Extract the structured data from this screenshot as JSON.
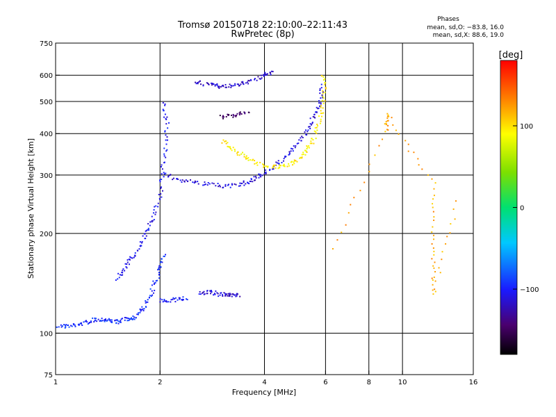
{
  "title": "Tromsø 20150718 22:10:00–22:11:43",
  "subtitle": "RwPretec (8p)",
  "phase_box": {
    "heading": "Phases",
    "line_o": "mean, sd,O: −83.8, 16.0",
    "line_x": "mean, sd,X:  88.6, 19.0"
  },
  "colorbar": {
    "label": "[deg]",
    "ticks": [
      {
        "value": 100,
        "label": "100"
      },
      {
        "value": 0,
        "label": "0"
      },
      {
        "value": -100,
        "label": "−100"
      }
    ],
    "range": [
      -180,
      180
    ]
  },
  "chart_data": {
    "type": "scatter",
    "xlabel": "Frequency [MHz]",
    "ylabel": "Stationary phase Virtual Height [km]",
    "xscale": "log",
    "yscale": "log",
    "xlim": [
      1,
      16
    ],
    "ylim": [
      75,
      750
    ],
    "xticks": [
      {
        "v": 1,
        "label": "1"
      },
      {
        "v": 2,
        "label": "2"
      },
      {
        "v": 4,
        "label": "4"
      },
      {
        "v": 6,
        "label": "6"
      },
      {
        "v": 8,
        "label": "8"
      },
      {
        "v": 10,
        "label": "10"
      },
      {
        "v": 16,
        "label": "16"
      }
    ],
    "xgrid": [
      2,
      4,
      6,
      8,
      10
    ],
    "yticks": [
      {
        "v": 75,
        "label": "75"
      },
      {
        "v": 100,
        "label": "100"
      },
      {
        "v": 200,
        "label": "200"
      },
      {
        "v": 300,
        "label": "300"
      },
      {
        "v": 400,
        "label": "400"
      },
      {
        "v": 500,
        "label": "500"
      },
      {
        "v": 600,
        "label": "600"
      },
      {
        "v": 750,
        "label": "750"
      }
    ],
    "ygrid": [
      100,
      200,
      300,
      400,
      500,
      600
    ],
    "traces": [
      {
        "name": "",
        "phase": -95,
        "points": [
          [
            1.0,
            105
          ],
          [
            1.1,
            105
          ],
          [
            1.2,
            107
          ],
          [
            1.3,
            110
          ],
          [
            1.4,
            110
          ],
          [
            1.5,
            108
          ],
          [
            1.6,
            110
          ],
          [
            1.7,
            112
          ],
          [
            1.8,
            120
          ],
          [
            1.9,
            135
          ],
          [
            2.0,
            155
          ],
          [
            2.05,
            175
          ]
        ]
      },
      {
        "name": "",
        "phase": -105,
        "points": [
          [
            1.5,
            145
          ],
          [
            1.6,
            160
          ],
          [
            1.7,
            175
          ],
          [
            1.8,
            195
          ],
          [
            1.9,
            220
          ],
          [
            2.0,
            260
          ],
          [
            2.05,
            330
          ],
          [
            2.1,
            420
          ],
          [
            2.05,
            500
          ]
        ]
      },
      {
        "name": "",
        "phase": -110,
        "points": [
          [
            2.05,
            300
          ],
          [
            2.3,
            290
          ],
          [
            2.6,
            283
          ],
          [
            3.0,
            278
          ],
          [
            3.4,
            280
          ],
          [
            3.7,
            290
          ],
          [
            4.0,
            305
          ],
          [
            4.4,
            325
          ],
          [
            4.8,
            355
          ],
          [
            5.2,
            395
          ],
          [
            5.5,
            440
          ],
          [
            5.75,
            490
          ],
          [
            5.9,
            560
          ]
        ]
      },
      {
        "name": "",
        "phase": -115,
        "points": [
          [
            2.6,
            132
          ],
          [
            2.8,
            133
          ],
          [
            3.0,
            131
          ],
          [
            3.2,
            130
          ],
          [
            3.4,
            130
          ]
        ]
      },
      {
        "name": "",
        "phase": -118,
        "points": [
          [
            2.5,
            575
          ],
          [
            2.8,
            560
          ],
          [
            3.0,
            555
          ],
          [
            3.3,
            560
          ],
          [
            3.6,
            575
          ],
          [
            4.0,
            600
          ],
          [
            4.2,
            610
          ]
        ]
      },
      {
        "name": "",
        "phase": 95,
        "points": [
          [
            3.0,
            380
          ],
          [
            3.3,
            355
          ],
          [
            3.6,
            335
          ],
          [
            4.0,
            320
          ],
          [
            4.4,
            318
          ],
          [
            4.8,
            325
          ],
          [
            5.2,
            345
          ],
          [
            5.5,
            380
          ],
          [
            5.8,
            440
          ],
          [
            5.95,
            520
          ],
          [
            5.9,
            610
          ]
        ]
      },
      {
        "name": "",
        "phase": -150,
        "points": [
          [
            3.0,
            450
          ],
          [
            3.3,
            452
          ],
          [
            3.6,
            465
          ]
        ]
      },
      {
        "name": "",
        "phase": -100,
        "points": [
          [
            2.0,
            125
          ],
          [
            2.2,
            126
          ],
          [
            2.4,
            128
          ]
        ]
      },
      {
        "name": "",
        "phase": 120,
        "points": [
          [
            6.3,
            180
          ],
          [
            9.0,
            410
          ],
          [
            9.0,
            460
          ],
          [
            12.3,
            280
          ],
          [
            12.3,
            180
          ],
          [
            12.3,
            130
          ],
          [
            14.5,
            260
          ]
        ]
      }
    ]
  }
}
